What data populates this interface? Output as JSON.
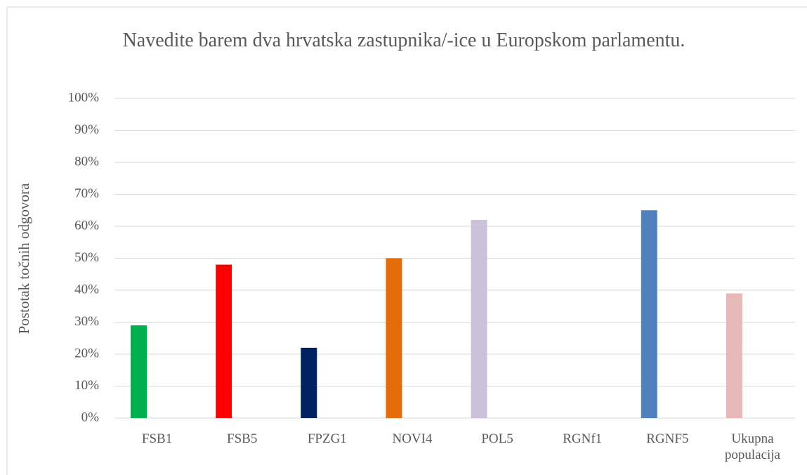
{
  "chart_data": {
    "type": "bar",
    "title": "Navedite barem dva hrvatska zastupnika/-ice u Europskom parlamentu.",
    "y_label": "Postotak točnih odgovora",
    "categories": [
      "FSB1",
      "FSB5",
      "FPZG1",
      "NOVI4",
      "POL5",
      "RGNf1",
      "RGNF5",
      "Ukupna populacija"
    ],
    "values": [
      29,
      48,
      22,
      50,
      62,
      null,
      65,
      39
    ],
    "colors": [
      "#00b050",
      "#ff0000",
      "#002060",
      "#e46c0a",
      "#ccc1da",
      "#4f81bd",
      "#4f81bd",
      "#e6b9b8"
    ],
    "ylim": [
      0,
      100
    ],
    "yticks": [
      {
        "value": 0,
        "label": "0%"
      },
      {
        "value": 10,
        "label": "10%"
      },
      {
        "value": 20,
        "label": "20%"
      },
      {
        "value": 30,
        "label": "30%"
      },
      {
        "value": 40,
        "label": "40%"
      },
      {
        "value": 50,
        "label": "50%"
      },
      {
        "value": 60,
        "label": "60%"
      },
      {
        "value": 70,
        "label": "70%"
      },
      {
        "value": 80,
        "label": "80%"
      },
      {
        "value": 90,
        "label": "90%"
      },
      {
        "value": 100,
        "label": "100%"
      }
    ],
    "grid": true
  }
}
